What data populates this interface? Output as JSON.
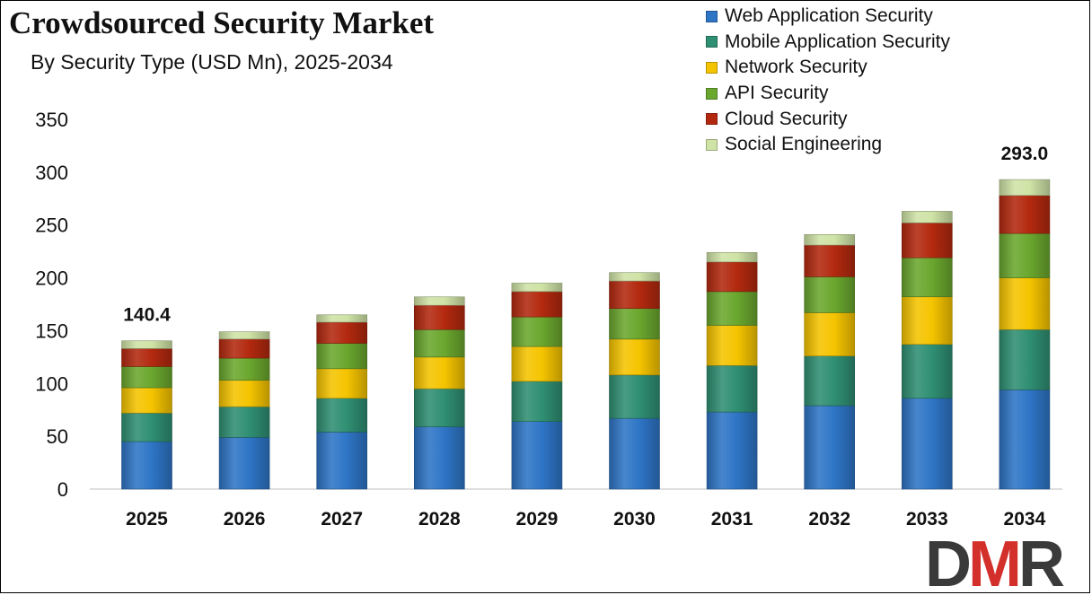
{
  "chart_data": {
    "type": "bar",
    "stacked": true,
    "title": "Crowdsourced Security Market",
    "subtitle": "By Security Type (USD Mn), 2025-2034",
    "categories": [
      "2025",
      "2026",
      "2027",
      "2028",
      "2029",
      "2030",
      "2031",
      "2032",
      "2033",
      "2034"
    ],
    "ylim": [
      0,
      350
    ],
    "yticks": [
      0,
      50,
      100,
      150,
      200,
      250,
      300,
      350
    ],
    "grid": false,
    "legend_position": "top-right",
    "series": [
      {
        "name": "Web Application Security",
        "color": "#2e75c6",
        "values": [
          45,
          49,
          54,
          59,
          64,
          67,
          73,
          79,
          86,
          94
        ]
      },
      {
        "name": "Mobile Application Security",
        "color": "#2f8f72",
        "values": [
          27,
          29,
          32,
          36,
          38,
          41,
          44,
          47,
          51,
          57
        ]
      },
      {
        "name": "Network Security",
        "color": "#f5c400",
        "values": [
          24,
          25,
          28,
          30,
          33,
          34,
          38,
          41,
          45,
          49
        ]
      },
      {
        "name": "API Security",
        "color": "#6aa72e",
        "values": [
          20,
          21,
          24,
          26,
          28,
          29,
          32,
          34,
          37,
          42
        ]
      },
      {
        "name": "Cloud Security",
        "color": "#b3290f",
        "values": [
          17,
          18,
          20,
          23,
          24,
          26,
          28,
          30,
          33,
          36
        ]
      },
      {
        "name": "Social Engineering",
        "color": "#cfe3a6",
        "values": [
          7.4,
          7,
          7,
          8,
          8,
          8,
          9,
          10,
          11,
          15
        ]
      }
    ],
    "annotations": [
      {
        "category": "2025",
        "label": "140.4"
      },
      {
        "category": "2034",
        "label": "293.0"
      }
    ]
  },
  "logo": {
    "text": "DMR",
    "colors": [
      "#3a3a3a",
      "#d3302c",
      "#3a3a3a"
    ]
  }
}
